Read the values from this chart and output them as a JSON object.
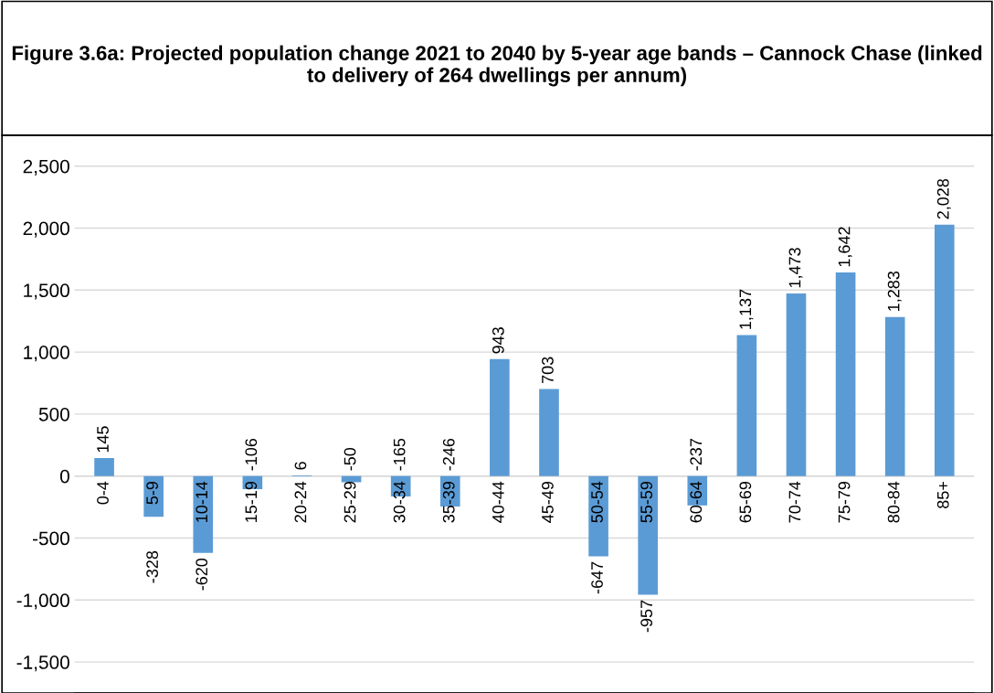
{
  "chart_data": {
    "type": "bar",
    "title": "Figure 3.6a: Projected population change 2021 to 2040 by 5-year age bands – Cannock Chase (linked to delivery of 264 dwellings per annum)",
    "categories": [
      "0-4",
      "5-9",
      "10-14",
      "15-19",
      "20-24",
      "25-29",
      "30-34",
      "35-39",
      "40-44",
      "45-49",
      "50-54",
      "55-59",
      "60-64",
      "65-69",
      "70-74",
      "75-79",
      "80-84",
      "85+"
    ],
    "values": [
      145,
      -328,
      -620,
      -106,
      6,
      -50,
      -165,
      -246,
      943,
      703,
      -647,
      -957,
      -237,
      1137,
      1473,
      1642,
      1283,
      2028
    ],
    "value_labels": [
      "145",
      "-328",
      "-620",
      "-106",
      "6",
      "-50",
      "-165",
      "-246",
      "943",
      "703",
      "-647",
      "-957",
      "-237",
      "1,137",
      "1,473",
      "1,642",
      "1,283",
      "2,028"
    ],
    "color": "#5b9bd5",
    "ylim": [
      -1750,
      2750
    ],
    "yticks": [
      {
        "value": -1500,
        "label": "-1,500"
      },
      {
        "value": -1000,
        "label": "-1,000"
      },
      {
        "value": -500,
        "label": "-500"
      },
      0,
      {
        "value": 500,
        "label": "500"
      },
      {
        "value": 1000,
        "label": "1,000"
      },
      {
        "value": 1500,
        "label": "1,500"
      },
      {
        "value": 2000,
        "label": "2,000"
      },
      {
        "value": 2500,
        "label": "2,500"
      }
    ],
    "grid": "y"
  }
}
